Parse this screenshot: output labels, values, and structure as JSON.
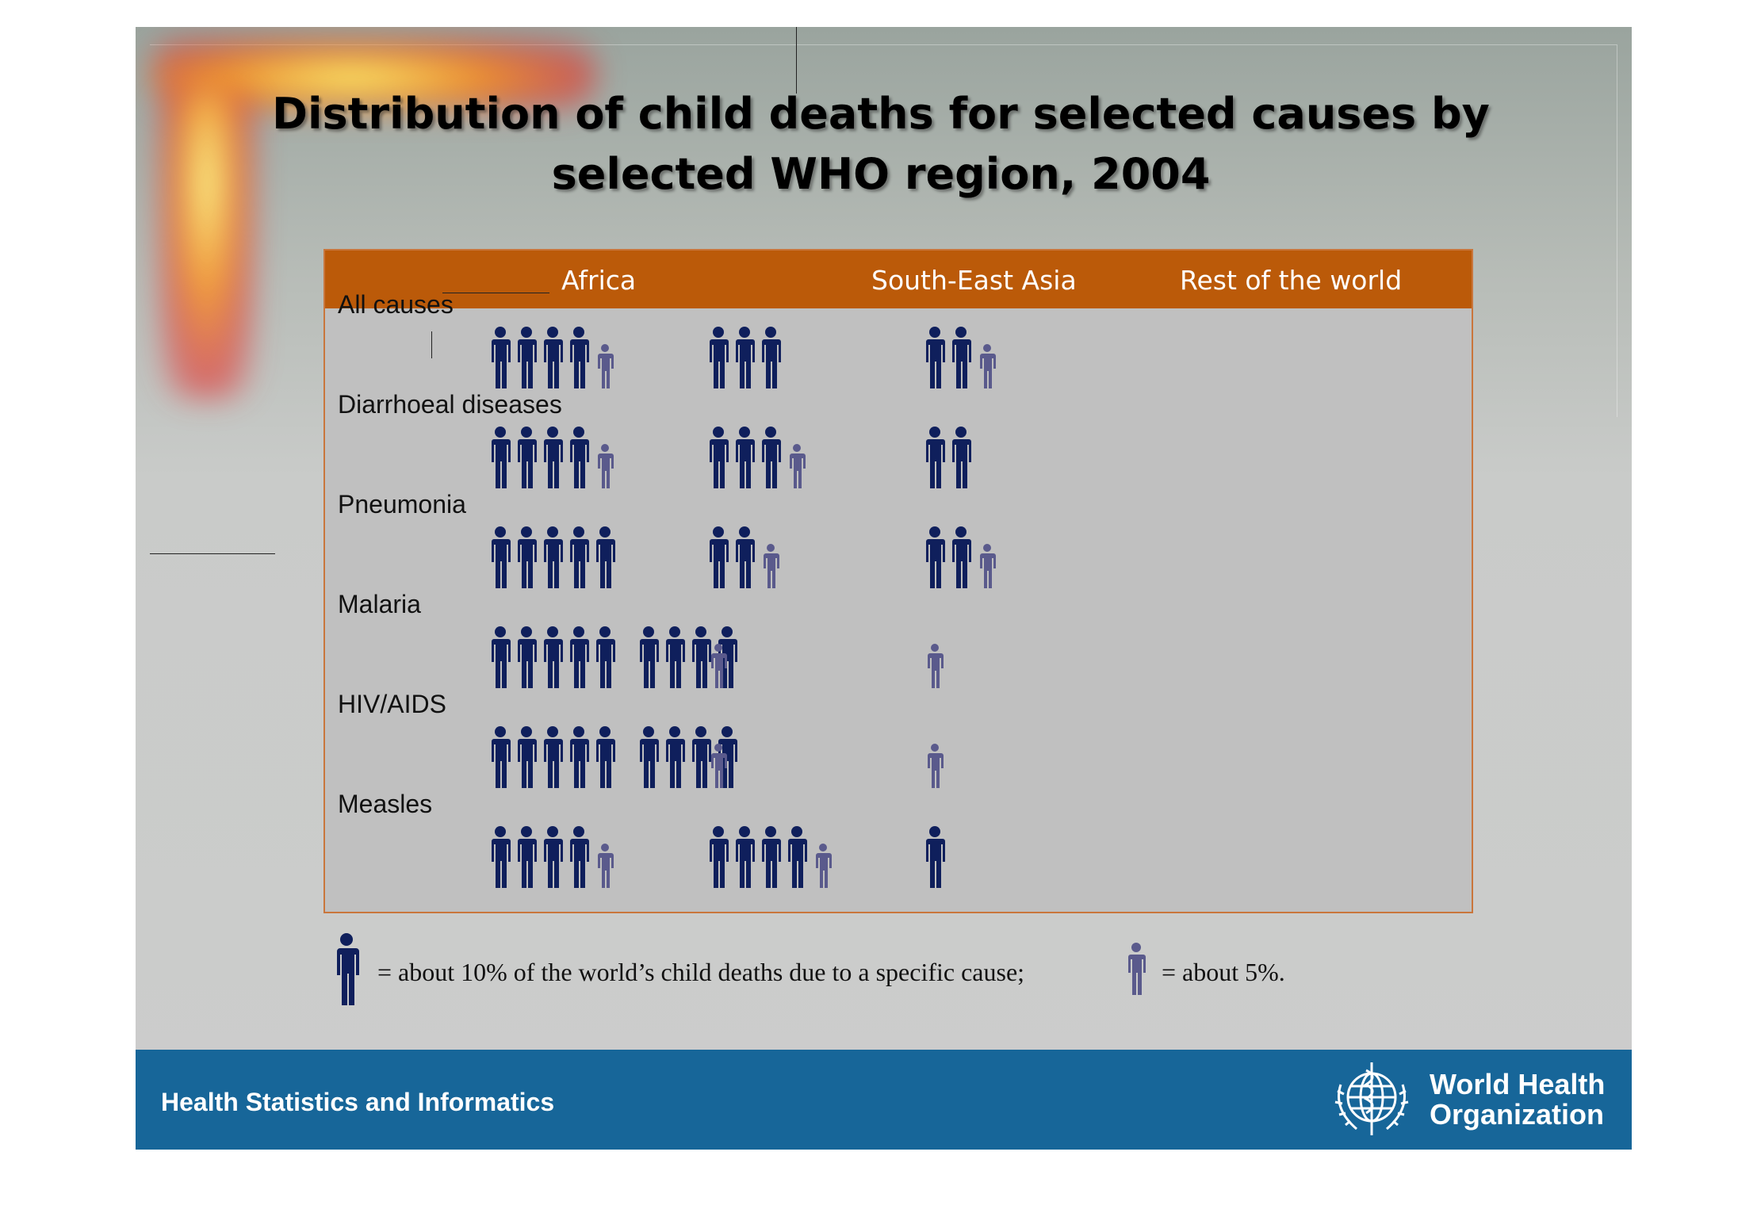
{
  "slide_title": "Distribution of child deaths for selected causes by selected WHO region, 2004",
  "chart_data": {
    "type": "table",
    "title": "Distribution of child deaths for selected causes by selected WHO region, 2004",
    "columns": [
      "Africa",
      "South-East Asia",
      "Rest of the world"
    ],
    "rows": [
      {
        "label": "All causes",
        "values": [
          45,
          30,
          25
        ]
      },
      {
        "label": "Diarrhoeal diseases",
        "values": [
          45,
          35,
          20
        ]
      },
      {
        "label": "Pneumonia",
        "values": [
          50,
          25,
          25
        ]
      },
      {
        "label": "Malaria",
        "values": [
          90,
          5,
          5
        ]
      },
      {
        "label": "HIV/AIDS",
        "values": [
          90,
          5,
          5
        ]
      },
      {
        "label": "Measles",
        "values": [
          45,
          45,
          10
        ]
      }
    ],
    "unit_percent": [
      10,
      5
    ],
    "colors": {
      "full_icon": "#0f1f5c",
      "half_icon": "#5a5a8c",
      "header": "#bb5a09",
      "box_background": "#c0c0c0"
    }
  },
  "legend": {
    "full_text": "= about 10% of the world’s child deaths due to a specific cause;",
    "half_text": "= about 5%."
  },
  "footer": {
    "left_text": "Health Statistics and Informatics",
    "org_line1": "World Health",
    "org_line2": "Organization",
    "logo_icon": "who-emblem-icon"
  }
}
